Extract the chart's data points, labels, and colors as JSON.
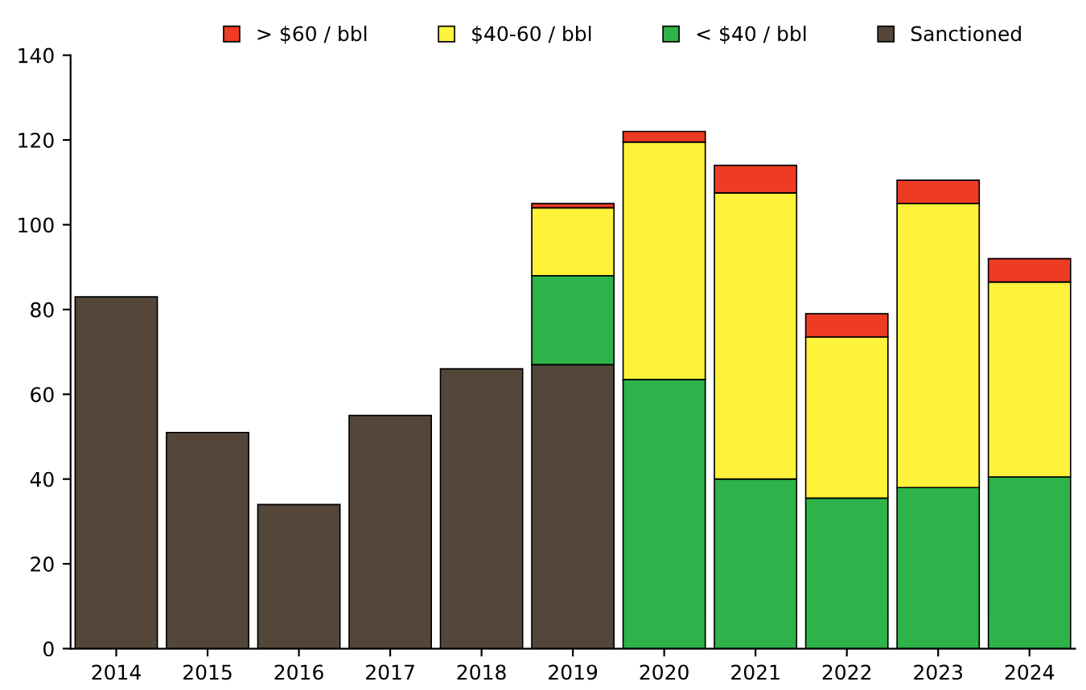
{
  "chart_data": {
    "type": "bar",
    "stacked": true,
    "categories": [
      "2014",
      "2015",
      "2016",
      "2017",
      "2018",
      "2019",
      "2020",
      "2021",
      "2022",
      "2023",
      "2024"
    ],
    "series": [
      {
        "name": "Sanctioned",
        "color": "#54473a",
        "values": [
          83,
          51,
          34,
          55,
          66,
          67,
          null,
          null,
          null,
          null,
          null
        ]
      },
      {
        "name": "< $40 / bbl",
        "color": "#2db34a",
        "values": [
          null,
          null,
          null,
          null,
          null,
          21,
          63.5,
          40,
          35.5,
          38,
          40.5
        ]
      },
      {
        "name": "$40-60 / bbl",
        "color": "#fff23a",
        "values": [
          null,
          null,
          null,
          null,
          null,
          16,
          56,
          67.5,
          38,
          67,
          46
        ]
      },
      {
        "name": "> $60 / bbl",
        "color": "#ee3b24",
        "values": [
          null,
          null,
          null,
          null,
          null,
          1,
          2.5,
          6.5,
          5.5,
          5.5,
          5.5
        ]
      }
    ],
    "ylim": [
      0,
      140
    ],
    "yticks": [
      0,
      20,
      40,
      60,
      80,
      100,
      120,
      140
    ],
    "legend": "top",
    "grid": false
  }
}
